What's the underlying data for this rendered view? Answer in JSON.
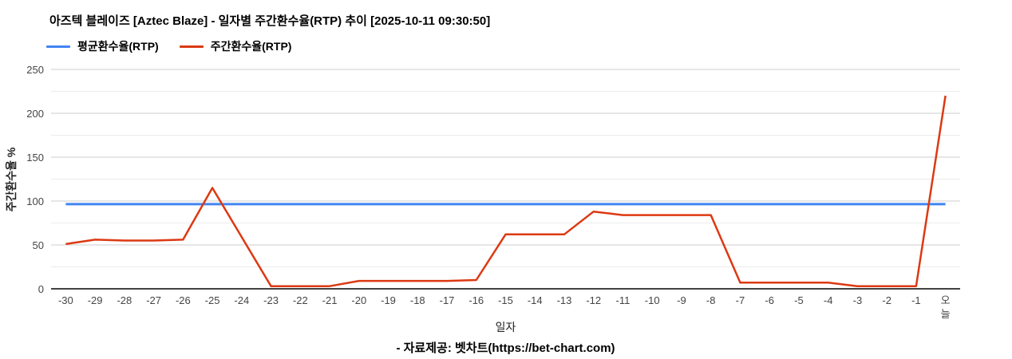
{
  "header": {
    "title": "아즈텍 블레이즈 [Aztec Blaze] - 일자별 주간환수율(RTP) 추이 [2025-10-11 09:30:50]"
  },
  "chart_data": {
    "type": "line",
    "title": "아즈텍 블레이즈 [Aztec Blaze] - 일자별 주간환수율(RTP) 추이 [2025-10-11 09:30:50]",
    "categories": [
      "-30",
      "-29",
      "-28",
      "-27",
      "-26",
      "-25",
      "-24",
      "-23",
      "-22",
      "-21",
      "-20",
      "-19",
      "-18",
      "-17",
      "-16",
      "-15",
      "-14",
      "-13",
      "-12",
      "-11",
      "-10",
      "-9",
      "-8",
      "-7",
      "-6",
      "-5",
      "-4",
      "-3",
      "-2",
      "-1",
      "오늘"
    ],
    "series": [
      {
        "name": "평균환수율(RTP)",
        "color": "#4285f4",
        "values": [
          96.5,
          96.5,
          96.5,
          96.5,
          96.5,
          96.5,
          96.5,
          96.5,
          96.5,
          96.5,
          96.5,
          96.5,
          96.5,
          96.5,
          96.5,
          96.5,
          96.5,
          96.5,
          96.5,
          96.5,
          96.5,
          96.5,
          96.5,
          96.5,
          96.5,
          96.5,
          96.5,
          96.5,
          96.5,
          96.5,
          96.5
        ]
      },
      {
        "name": "주간환수율(RTP)",
        "color": "#dc3912",
        "values": [
          51,
          56,
          55,
          55,
          56,
          115,
          59,
          3,
          3,
          3,
          9,
          9,
          9,
          9,
          10,
          62,
          62,
          62,
          88,
          84,
          84,
          84,
          84,
          7,
          7,
          7,
          7,
          3,
          3,
          3,
          220
        ]
      }
    ],
    "xlabel": "일자",
    "ylabel": "주간환수율 %",
    "ylim": [
      0,
      250
    ],
    "ytick_step": 50,
    "ytick_labels": [
      "0",
      "50",
      "100",
      "150",
      "200",
      "250"
    ],
    "grid": true,
    "legend_position": "top-left"
  },
  "footer": {
    "source": "- 자료제공: 벳차트(https://bet-chart.com)"
  }
}
